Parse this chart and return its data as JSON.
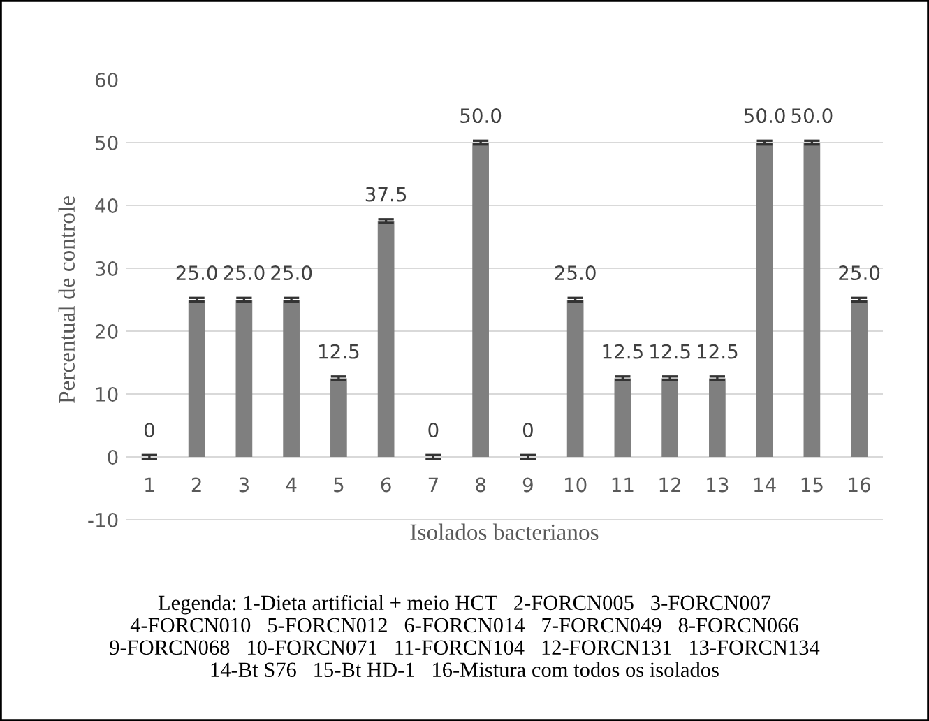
{
  "chart_data": {
    "type": "bar",
    "xlabel": "Isolados bacterianos",
    "ylabel": "Percentual de controle",
    "categories": [
      "1",
      "2",
      "3",
      "4",
      "5",
      "6",
      "7",
      "8",
      "9",
      "10",
      "11",
      "12",
      "13",
      "14",
      "15",
      "16"
    ],
    "values": [
      0,
      25,
      25,
      25,
      12.5,
      37.5,
      0,
      50,
      0,
      25,
      12.5,
      12.5,
      12.5,
      50,
      50,
      25
    ],
    "value_labels": [
      "0",
      "25.0",
      "25.0",
      "25.0",
      "12.5",
      "37.5",
      "0",
      "50.0",
      "0",
      "25.0",
      "12.5",
      "12.5",
      "12.5",
      "50.0",
      "50.0",
      "25.0"
    ],
    "errors": [
      0.3,
      0.3,
      0.3,
      0.3,
      0.3,
      0.3,
      0.3,
      0.3,
      0.3,
      0.3,
      0.3,
      0.3,
      0.3,
      0.3,
      0.3,
      0.3
    ],
    "color": "#7f7f7f",
    "ylim": [
      -10,
      60
    ],
    "yticks": [
      -10,
      0,
      10,
      20,
      30,
      40,
      50,
      60
    ],
    "grid": "y",
    "annotations": [
      "Legenda: 1-Dieta artificial + meio HCT   2-FORCN005   3-FORCN007\n4-FORCN010   5-FORCN012   6-FORCN014   7-FORCN049   8-FORCN066\n9-FORCN068   10-FORCN071   11-FORCN104   12-FORCN131   13-FORCN134\n14-Bt S76   15-Bt HD-1   16-Mistura com todos os isolados"
    ]
  }
}
